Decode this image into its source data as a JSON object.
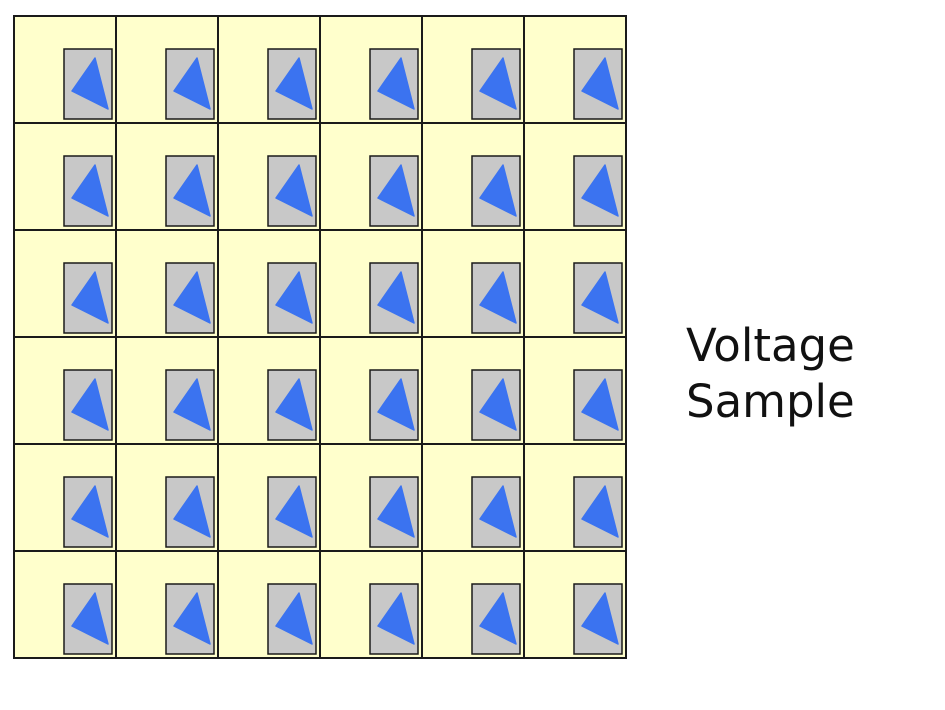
{
  "caption": {
    "line1": "Voltage",
    "line2": "Sample"
  },
  "array": {
    "rows": 6,
    "cols": 6,
    "cell_fill": "#FFFFCC",
    "pad_fill": "#C8C8C8",
    "marker_fill": "#3B73F0",
    "grid_stroke": "#1A1A1A"
  }
}
